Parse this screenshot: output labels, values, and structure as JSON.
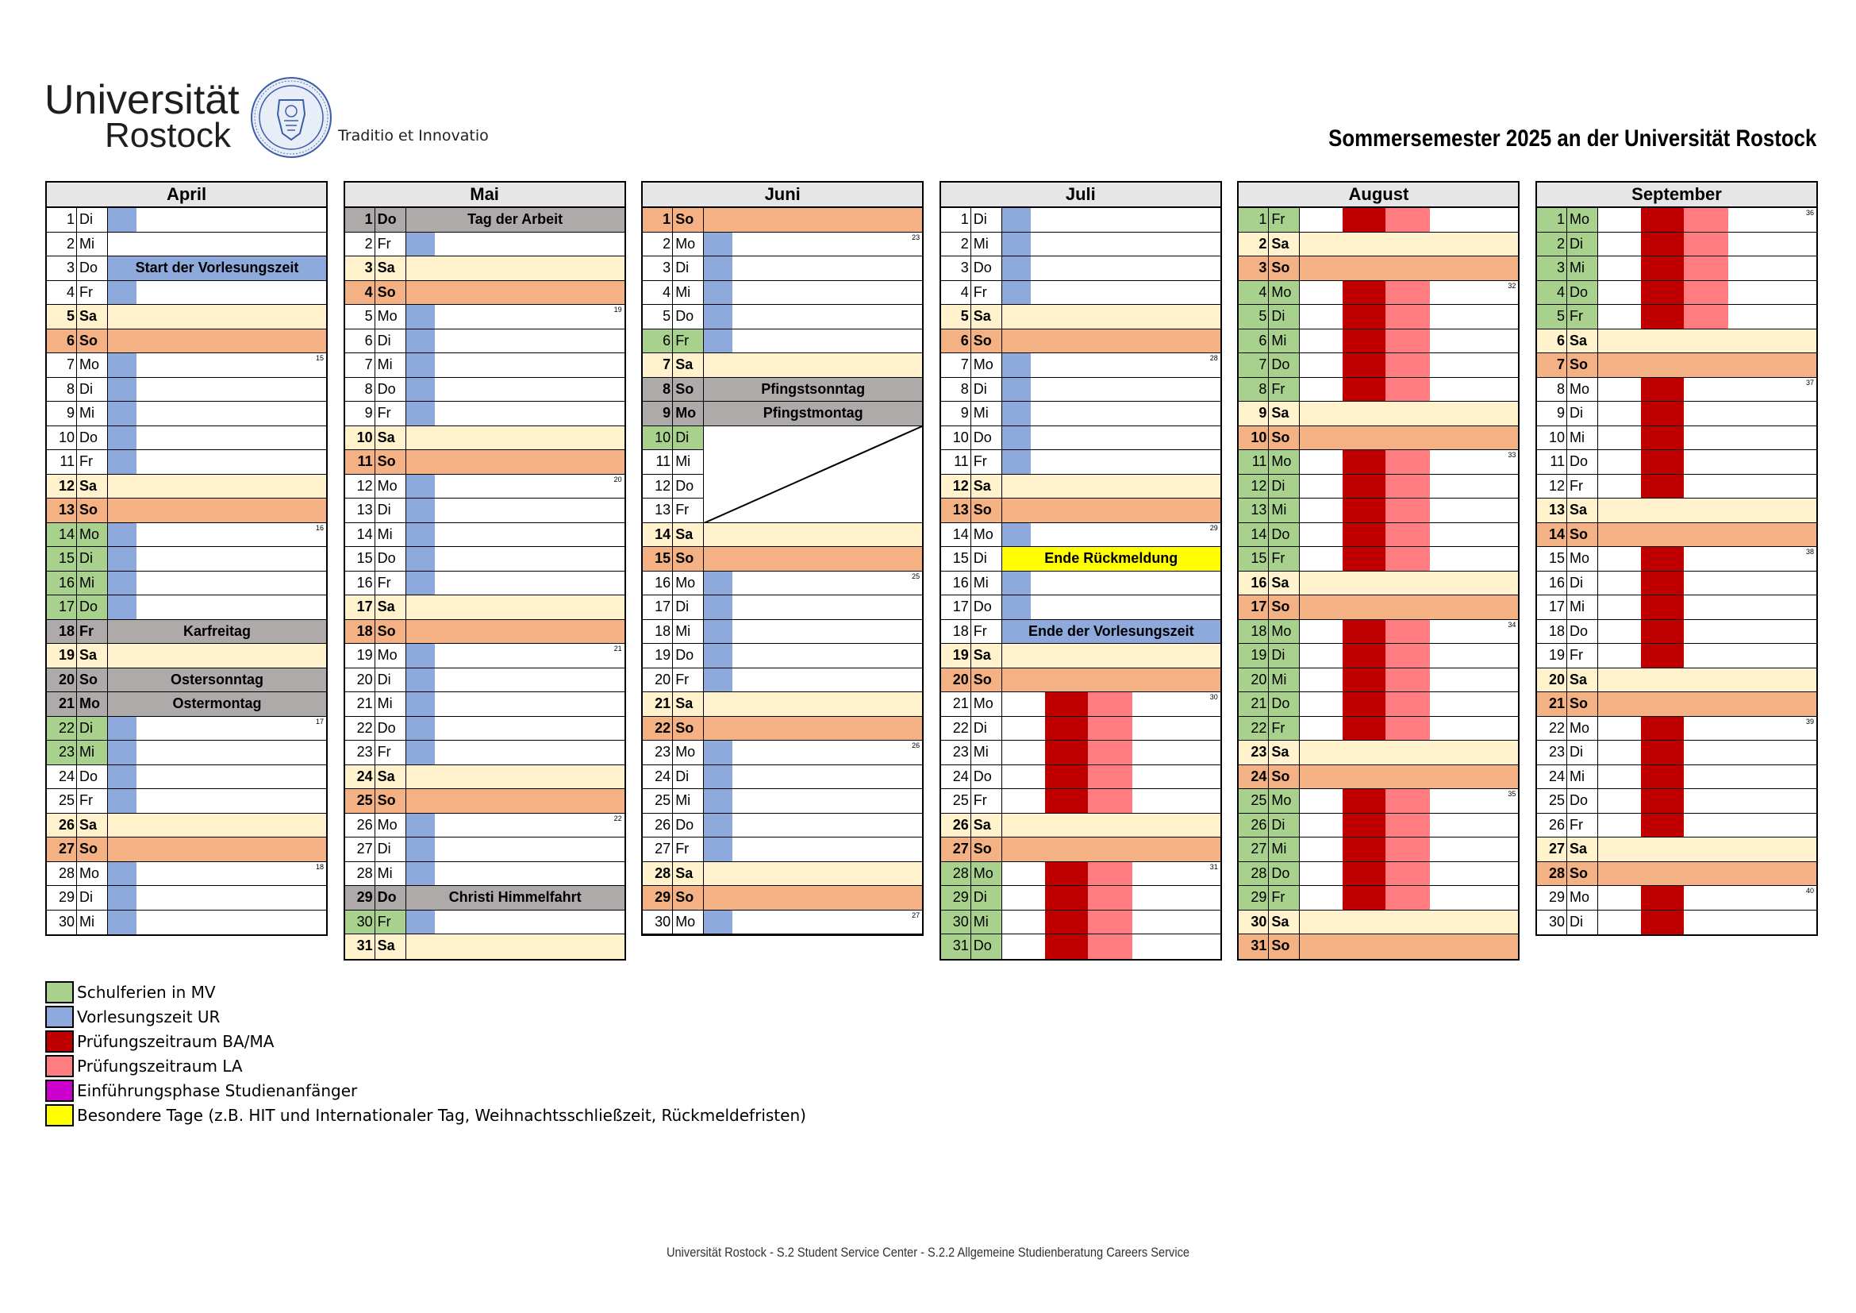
{
  "header": {
    "brand_line1": "Universität",
    "brand_line2": "Rostock",
    "motto": "Traditio et Innovatio",
    "title": "Sommersemester 2025 an der Universität Rostock"
  },
  "colors": {
    "schulferien": "#a9d18e",
    "vorlesung": "#8ea9db",
    "pruefung_bama": "#c00000",
    "pruefung_la": "#ff7c80",
    "einfuehrung": "#cc00cc",
    "besondere": "#ffff00",
    "saturday": "#fff2cc",
    "sunday": "#f4b183",
    "holiday": "#aeaaaa",
    "header": "#e6e6e6"
  },
  "months": [
    {
      "name": "April",
      "days": [
        {
          "d": "1",
          "w": "Di",
          "fill": "vl"
        },
        {
          "d": "2",
          "w": "Mi"
        },
        {
          "d": "3",
          "w": "Do",
          "fill": "vlfull",
          "label": "Start der Vorlesungszeit"
        },
        {
          "d": "4",
          "w": "Fr",
          "fill": "vl"
        },
        {
          "d": "5",
          "w": "Sa",
          "fill": "sat"
        },
        {
          "d": "6",
          "w": "So",
          "fill": "sun"
        },
        {
          "d": "7",
          "w": "Mo",
          "fill": "vl",
          "wk": "15"
        },
        {
          "d": "8",
          "w": "Di",
          "fill": "vl"
        },
        {
          "d": "9",
          "w": "Mi",
          "fill": "vl"
        },
        {
          "d": "10",
          "w": "Do",
          "fill": "vl"
        },
        {
          "d": "11",
          "w": "Fr",
          "fill": "vl"
        },
        {
          "d": "12",
          "w": "Sa",
          "fill": "sat"
        },
        {
          "d": "13",
          "w": "So",
          "fill": "sun"
        },
        {
          "d": "14",
          "w": "Mo",
          "fill": "vl",
          "sf": true,
          "wk": "16"
        },
        {
          "d": "15",
          "w": "Di",
          "fill": "vl",
          "sf": true
        },
        {
          "d": "16",
          "w": "Mi",
          "fill": "vl",
          "sf": true
        },
        {
          "d": "17",
          "w": "Do",
          "fill": "vl",
          "sf": true
        },
        {
          "d": "18",
          "w": "Fr",
          "fill": "hol",
          "label": "Karfreitag"
        },
        {
          "d": "19",
          "w": "Sa",
          "fill": "sat"
        },
        {
          "d": "20",
          "w": "So",
          "fill": "hol",
          "label": "Ostersonntag"
        },
        {
          "d": "21",
          "w": "Mo",
          "fill": "hol",
          "label": "Ostermontag"
        },
        {
          "d": "22",
          "w": "Di",
          "fill": "vl",
          "sf": true,
          "wk": "17"
        },
        {
          "d": "23",
          "w": "Mi",
          "fill": "vl",
          "sf": true
        },
        {
          "d": "24",
          "w": "Do",
          "fill": "vl"
        },
        {
          "d": "25",
          "w": "Fr",
          "fill": "vl"
        },
        {
          "d": "26",
          "w": "Sa",
          "fill": "sat"
        },
        {
          "d": "27",
          "w": "So",
          "fill": "sun"
        },
        {
          "d": "28",
          "w": "Mo",
          "fill": "vl",
          "wk": "18"
        },
        {
          "d": "29",
          "w": "Di",
          "fill": "vl"
        },
        {
          "d": "30",
          "w": "Mi",
          "fill": "vl"
        }
      ]
    },
    {
      "name": "Mai",
      "days": [
        {
          "d": "1",
          "w": "Do",
          "fill": "hol",
          "label": "Tag der Arbeit"
        },
        {
          "d": "2",
          "w": "Fr",
          "fill": "vl"
        },
        {
          "d": "3",
          "w": "Sa",
          "fill": "sat"
        },
        {
          "d": "4",
          "w": "So",
          "fill": "sun"
        },
        {
          "d": "5",
          "w": "Mo",
          "fill": "vl",
          "wk": "19"
        },
        {
          "d": "6",
          "w": "Di",
          "fill": "vl"
        },
        {
          "d": "7",
          "w": "Mi",
          "fill": "vl"
        },
        {
          "d": "8",
          "w": "Do",
          "fill": "vl"
        },
        {
          "d": "9",
          "w": "Fr",
          "fill": "vl"
        },
        {
          "d": "10",
          "w": "Sa",
          "fill": "sat"
        },
        {
          "d": "11",
          "w": "So",
          "fill": "sun"
        },
        {
          "d": "12",
          "w": "Mo",
          "fill": "vl",
          "wk": "20"
        },
        {
          "d": "13",
          "w": "Di",
          "fill": "vl"
        },
        {
          "d": "14",
          "w": "Mi",
          "fill": "vl"
        },
        {
          "d": "15",
          "w": "Do",
          "fill": "vl"
        },
        {
          "d": "16",
          "w": "Fr",
          "fill": "vl"
        },
        {
          "d": "17",
          "w": "Sa",
          "fill": "sat"
        },
        {
          "d": "18",
          "w": "So",
          "fill": "sun"
        },
        {
          "d": "19",
          "w": "Mo",
          "fill": "vl",
          "wk": "21"
        },
        {
          "d": "20",
          "w": "Di",
          "fill": "vl"
        },
        {
          "d": "21",
          "w": "Mi",
          "fill": "vl"
        },
        {
          "d": "22",
          "w": "Do",
          "fill": "vl"
        },
        {
          "d": "23",
          "w": "Fr",
          "fill": "vl"
        },
        {
          "d": "24",
          "w": "Sa",
          "fill": "sat"
        },
        {
          "d": "25",
          "w": "So",
          "fill": "sun"
        },
        {
          "d": "26",
          "w": "Mo",
          "fill": "vl",
          "wk": "22"
        },
        {
          "d": "27",
          "w": "Di",
          "fill": "vl"
        },
        {
          "d": "28",
          "w": "Mi",
          "fill": "vl"
        },
        {
          "d": "29",
          "w": "Do",
          "fill": "hol",
          "label": "Christi Himmelfahrt"
        },
        {
          "d": "30",
          "w": "Fr",
          "fill": "vl",
          "sf": true
        },
        {
          "d": "31",
          "w": "Sa",
          "fill": "sat"
        }
      ]
    },
    {
      "name": "Juni",
      "days": [
        {
          "d": "1",
          "w": "So",
          "fill": "sun"
        },
        {
          "d": "2",
          "w": "Mo",
          "fill": "vl",
          "wk": "23"
        },
        {
          "d": "3",
          "w": "Di",
          "fill": "vl"
        },
        {
          "d": "4",
          "w": "Mi",
          "fill": "vl"
        },
        {
          "d": "5",
          "w": "Do",
          "fill": "vl"
        },
        {
          "d": "6",
          "w": "Fr",
          "fill": "vl",
          "sf": true
        },
        {
          "d": "7",
          "w": "Sa",
          "fill": "sat"
        },
        {
          "d": "8",
          "w": "So",
          "fill": "hol",
          "label": "Pfingstsonntag"
        },
        {
          "d": "9",
          "w": "Mo",
          "fill": "hol",
          "label": "Pfingstmontag"
        },
        {
          "d": "10",
          "w": "Di",
          "fill": "none",
          "sf": true
        },
        {
          "d": "11",
          "w": "Mi",
          "fill": "none"
        },
        {
          "d": "12",
          "w": "Do",
          "fill": "none"
        },
        {
          "d": "13",
          "w": "Fr",
          "fill": "none"
        },
        {
          "d": "14",
          "w": "Sa",
          "fill": "sat"
        },
        {
          "d": "15",
          "w": "So",
          "fill": "sun"
        },
        {
          "d": "16",
          "w": "Mo",
          "fill": "vl",
          "wk": "25"
        },
        {
          "d": "17",
          "w": "Di",
          "fill": "vl"
        },
        {
          "d": "18",
          "w": "Mi",
          "fill": "vl"
        },
        {
          "d": "19",
          "w": "Do",
          "fill": "vl"
        },
        {
          "d": "20",
          "w": "Fr",
          "fill": "vl"
        },
        {
          "d": "21",
          "w": "Sa",
          "fill": "sat"
        },
        {
          "d": "22",
          "w": "So",
          "fill": "sun"
        },
        {
          "d": "23",
          "w": "Mo",
          "fill": "vl",
          "wk": "26"
        },
        {
          "d": "24",
          "w": "Di",
          "fill": "vl"
        },
        {
          "d": "25",
          "w": "Mi",
          "fill": "vl"
        },
        {
          "d": "26",
          "w": "Do",
          "fill": "vl"
        },
        {
          "d": "27",
          "w": "Fr",
          "fill": "vl"
        },
        {
          "d": "28",
          "w": "Sa",
          "fill": "sat"
        },
        {
          "d": "29",
          "w": "So",
          "fill": "sun"
        },
        {
          "d": "30",
          "w": "Mo",
          "fill": "vl",
          "wk": "27"
        }
      ]
    },
    {
      "name": "Juli",
      "days": [
        {
          "d": "1",
          "w": "Di",
          "fill": "vl"
        },
        {
          "d": "2",
          "w": "Mi",
          "fill": "vl"
        },
        {
          "d": "3",
          "w": "Do",
          "fill": "vl"
        },
        {
          "d": "4",
          "w": "Fr",
          "fill": "vl"
        },
        {
          "d": "5",
          "w": "Sa",
          "fill": "sat"
        },
        {
          "d": "6",
          "w": "So",
          "fill": "sun"
        },
        {
          "d": "7",
          "w": "Mo",
          "fill": "vl",
          "wk": "28"
        },
        {
          "d": "8",
          "w": "Di",
          "fill": "vl"
        },
        {
          "d": "9",
          "w": "Mi",
          "fill": "vl"
        },
        {
          "d": "10",
          "w": "Do",
          "fill": "vl"
        },
        {
          "d": "11",
          "w": "Fr",
          "fill": "vl"
        },
        {
          "d": "12",
          "w": "Sa",
          "fill": "sat"
        },
        {
          "d": "13",
          "w": "So",
          "fill": "sun"
        },
        {
          "d": "14",
          "w": "Mo",
          "fill": "vl",
          "wk": "29"
        },
        {
          "d": "15",
          "w": "Di",
          "fill": "yellow",
          "label": "Ende Rückmeldung"
        },
        {
          "d": "16",
          "w": "Mi",
          "fill": "vl"
        },
        {
          "d": "17",
          "w": "Do",
          "fill": "vl"
        },
        {
          "d": "18",
          "w": "Fr",
          "fill": "vlfull",
          "label": "Ende der Vorlesungszeit"
        },
        {
          "d": "19",
          "w": "Sa",
          "fill": "sat"
        },
        {
          "d": "20",
          "w": "So",
          "fill": "sun"
        },
        {
          "d": "21",
          "w": "Mo",
          "fill": "exam",
          "wk": "30"
        },
        {
          "d": "22",
          "w": "Di",
          "fill": "exam"
        },
        {
          "d": "23",
          "w": "Mi",
          "fill": "exam"
        },
        {
          "d": "24",
          "w": "Do",
          "fill": "exam"
        },
        {
          "d": "25",
          "w": "Fr",
          "fill": "exam"
        },
        {
          "d": "26",
          "w": "Sa",
          "fill": "sat"
        },
        {
          "d": "27",
          "w": "So",
          "fill": "sun"
        },
        {
          "d": "28",
          "w": "Mo",
          "fill": "exam",
          "sf": true,
          "wk": "31"
        },
        {
          "d": "29",
          "w": "Di",
          "fill": "exam",
          "sf": true
        },
        {
          "d": "30",
          "w": "Mi",
          "fill": "exam",
          "sf": true
        },
        {
          "d": "31",
          "w": "Do",
          "fill": "exam",
          "sf": true
        }
      ]
    },
    {
      "name": "August",
      "days": [
        {
          "d": "1",
          "w": "Fr",
          "fill": "exam",
          "sf": true
        },
        {
          "d": "2",
          "w": "Sa",
          "fill": "sat"
        },
        {
          "d": "3",
          "w": "So",
          "fill": "sun"
        },
        {
          "d": "4",
          "w": "Mo",
          "fill": "exam",
          "sf": true,
          "wk": "32"
        },
        {
          "d": "5",
          "w": "Di",
          "fill": "exam",
          "sf": true
        },
        {
          "d": "6",
          "w": "Mi",
          "fill": "exam",
          "sf": true
        },
        {
          "d": "7",
          "w": "Do",
          "fill": "exam",
          "sf": true
        },
        {
          "d": "8",
          "w": "Fr",
          "fill": "exam",
          "sf": true
        },
        {
          "d": "9",
          "w": "Sa",
          "fill": "sat"
        },
        {
          "d": "10",
          "w": "So",
          "fill": "sun"
        },
        {
          "d": "11",
          "w": "Mo",
          "fill": "exam",
          "sf": true,
          "wk": "33"
        },
        {
          "d": "12",
          "w": "Di",
          "fill": "exam",
          "sf": true
        },
        {
          "d": "13",
          "w": "Mi",
          "fill": "exam",
          "sf": true
        },
        {
          "d": "14",
          "w": "Do",
          "fill": "exam",
          "sf": true
        },
        {
          "d": "15",
          "w": "Fr",
          "fill": "exam",
          "sf": true
        },
        {
          "d": "16",
          "w": "Sa",
          "fill": "sat"
        },
        {
          "d": "17",
          "w": "So",
          "fill": "sun"
        },
        {
          "d": "18",
          "w": "Mo",
          "fill": "exam",
          "sf": true,
          "wk": "34"
        },
        {
          "d": "19",
          "w": "Di",
          "fill": "exam",
          "sf": true
        },
        {
          "d": "20",
          "w": "Mi",
          "fill": "exam",
          "sf": true
        },
        {
          "d": "21",
          "w": "Do",
          "fill": "exam",
          "sf": true
        },
        {
          "d": "22",
          "w": "Fr",
          "fill": "exam",
          "sf": true
        },
        {
          "d": "23",
          "w": "Sa",
          "fill": "sat"
        },
        {
          "d": "24",
          "w": "So",
          "fill": "sun"
        },
        {
          "d": "25",
          "w": "Mo",
          "fill": "exam",
          "sf": true,
          "wk": "35"
        },
        {
          "d": "26",
          "w": "Di",
          "fill": "exam",
          "sf": true
        },
        {
          "d": "27",
          "w": "Mi",
          "fill": "exam",
          "sf": true
        },
        {
          "d": "28",
          "w": "Do",
          "fill": "exam",
          "sf": true
        },
        {
          "d": "29",
          "w": "Fr",
          "fill": "exam",
          "sf": true
        },
        {
          "d": "30",
          "w": "Sa",
          "fill": "sat"
        },
        {
          "d": "31",
          "w": "So",
          "fill": "sun"
        }
      ]
    },
    {
      "name": "September",
      "days": [
        {
          "d": "1",
          "w": "Mo",
          "fill": "exam",
          "sf": true,
          "wk": "36"
        },
        {
          "d": "2",
          "w": "Di",
          "fill": "exam",
          "sf": true
        },
        {
          "d": "3",
          "w": "Mi",
          "fill": "exam",
          "sf": true
        },
        {
          "d": "4",
          "w": "Do",
          "fill": "exam",
          "sf": true
        },
        {
          "d": "5",
          "w": "Fr",
          "fill": "exam",
          "sf": true
        },
        {
          "d": "6",
          "w": "Sa",
          "fill": "sat"
        },
        {
          "d": "7",
          "w": "So",
          "fill": "sun"
        },
        {
          "d": "8",
          "w": "Mo",
          "fill": "examred",
          "wk": "37"
        },
        {
          "d": "9",
          "w": "Di",
          "fill": "examred"
        },
        {
          "d": "10",
          "w": "Mi",
          "fill": "examred"
        },
        {
          "d": "11",
          "w": "Do",
          "fill": "examred"
        },
        {
          "d": "12",
          "w": "Fr",
          "fill": "examred"
        },
        {
          "d": "13",
          "w": "Sa",
          "fill": "sat"
        },
        {
          "d": "14",
          "w": "So",
          "fill": "sun"
        },
        {
          "d": "15",
          "w": "Mo",
          "fill": "examred",
          "wk": "38"
        },
        {
          "d": "16",
          "w": "Di",
          "fill": "examred"
        },
        {
          "d": "17",
          "w": "Mi",
          "fill": "examred"
        },
        {
          "d": "18",
          "w": "Do",
          "fill": "examred"
        },
        {
          "d": "19",
          "w": "Fr",
          "fill": "examred"
        },
        {
          "d": "20",
          "w": "Sa",
          "fill": "sat"
        },
        {
          "d": "21",
          "w": "So",
          "fill": "sun"
        },
        {
          "d": "22",
          "w": "Mo",
          "fill": "examred",
          "wk": "39"
        },
        {
          "d": "23",
          "w": "Di",
          "fill": "examred"
        },
        {
          "d": "24",
          "w": "Mi",
          "fill": "examred"
        },
        {
          "d": "25",
          "w": "Do",
          "fill": "examred"
        },
        {
          "d": "26",
          "w": "Fr",
          "fill": "examred"
        },
        {
          "d": "27",
          "w": "Sa",
          "fill": "sat"
        },
        {
          "d": "28",
          "w": "So",
          "fill": "sun"
        },
        {
          "d": "29",
          "w": "Mo",
          "fill": "examred",
          "wk": "40"
        },
        {
          "d": "30",
          "w": "Di",
          "fill": "examred"
        }
      ]
    }
  ],
  "legend": [
    {
      "color": "#a9d18e",
      "text": "Schulferien in MV"
    },
    {
      "color": "#8ea9db",
      "text": "Vorlesungszeit UR"
    },
    {
      "color": "#c00000",
      "text": "Prüfungszeitraum  BA/MA"
    },
    {
      "color": "#ff7c80",
      "text": "Prüfungszeitraum LA"
    },
    {
      "color": "#cc00cc",
      "text": "Einführungsphase Studienanfänger"
    },
    {
      "color": "#ffff00",
      "text": "Besondere Tage (z.B. HIT und Internationaler Tag, Weihnachtsschließzeit, Rückmeldefristen)"
    }
  ],
  "footer": "Universität Rostock - S.2 Student Service Center - S.2.2 Allgemeine Studienberatung Careers Service"
}
